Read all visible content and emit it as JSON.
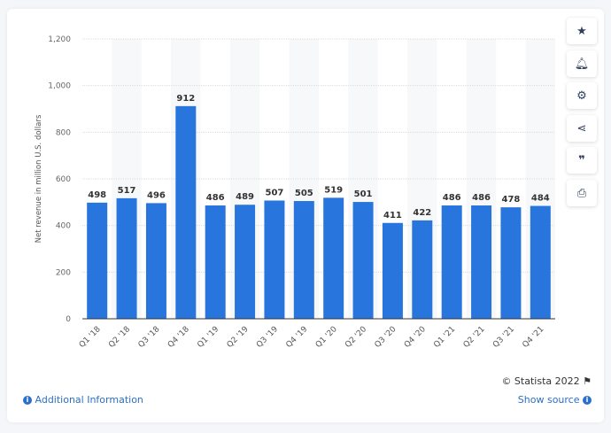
{
  "chart_data": {
    "type": "bar",
    "categories": [
      "Q1 '18",
      "Q2 '18",
      "Q3 '18",
      "Q4 '18",
      "Q1 '19",
      "Q2 '19",
      "Q3 '19",
      "Q4 '19",
      "Q1 '20",
      "Q2 '20",
      "Q3 '20",
      "Q4 '20",
      "Q1 '21",
      "Q2 '21",
      "Q3 '21",
      "Q4 '21"
    ],
    "values": [
      498,
      517,
      496,
      912,
      486,
      489,
      507,
      505,
      519,
      501,
      411,
      422,
      486,
      486,
      478,
      484
    ],
    "ylabel": "Net revenue in million U.S. dollars",
    "xlabel": "",
    "ylim": [
      0,
      1200
    ],
    "yticks": [
      0,
      200,
      400,
      600,
      800,
      1000,
      1200
    ],
    "ytick_labels": [
      "0",
      "200",
      "400",
      "600",
      "800",
      "1,000",
      "1,200"
    ],
    "grid": true,
    "bar_color": "#2876dd"
  },
  "footer": {
    "copyright": "© Statista 2022",
    "additional_info": "Additional Information",
    "show_source": "Show source"
  },
  "side_buttons": [
    "star-icon",
    "bell-icon",
    "gear-icon",
    "share-icon",
    "quote-icon",
    "print-icon"
  ]
}
